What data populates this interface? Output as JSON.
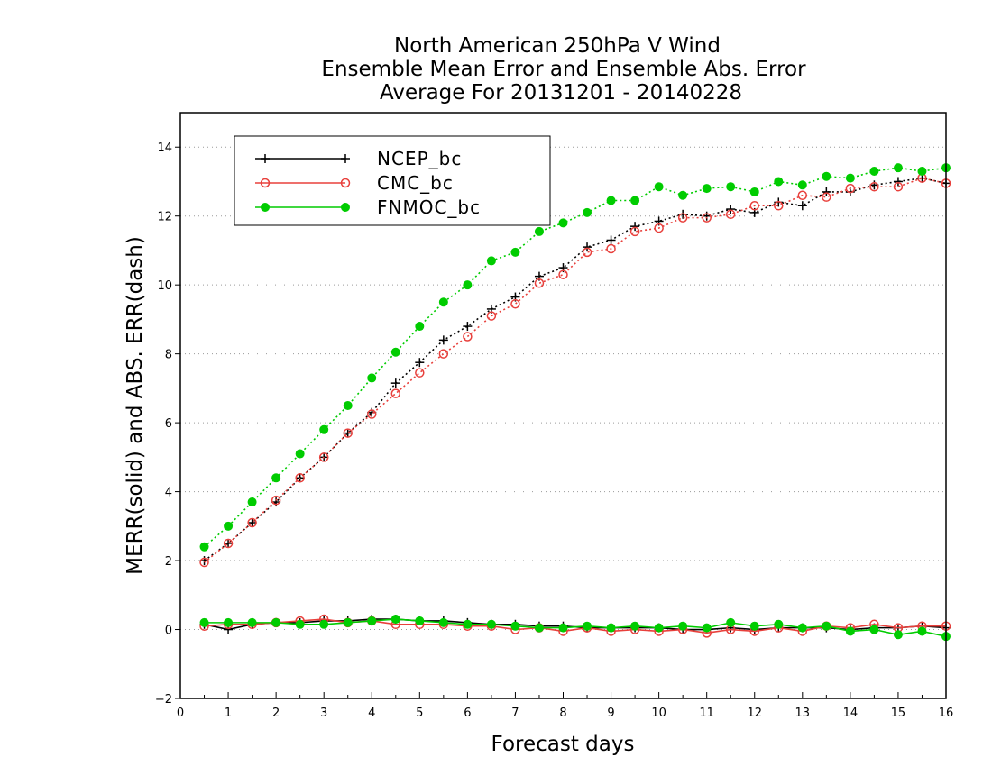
{
  "title_lines": [
    "North American 250hPa V Wind",
    "Ensemble Mean Error and Ensemble Abs. Error",
    "Average For 20131201 - 20140228"
  ],
  "chart_data": {
    "type": "line",
    "title": "North American 250hPa V Wind\nEnsemble Mean Error and Ensemble Abs. Error\nAverage For 20131201 - 20140228",
    "xlabel": "Forecast days",
    "ylabel": "MERR(solid) and ABS. ERR(dash)",
    "xlim": [
      0,
      16
    ],
    "ylim": [
      -2,
      15
    ],
    "xticks": [
      0,
      1,
      2,
      3,
      4,
      5,
      6,
      7,
      8,
      9,
      10,
      11,
      12,
      13,
      14,
      15,
      16
    ],
    "yticks": [
      -2,
      0,
      2,
      4,
      6,
      8,
      10,
      12,
      14
    ],
    "grid": "horizontal dotted",
    "legend_position": "top-left",
    "x": [
      0.5,
      1,
      1.5,
      2,
      2.5,
      3,
      3.5,
      4,
      4.5,
      5,
      5.5,
      6,
      6.5,
      7,
      7.5,
      8,
      8.5,
      9,
      9.5,
      10,
      10.5,
      11,
      11.5,
      12,
      12.5,
      13,
      13.5,
      14,
      14.5,
      15,
      15.5,
      16
    ],
    "series": [
      {
        "name": "NCEP_bc",
        "color": "#000000",
        "marker": "plus",
        "abs_err": [
          2.0,
          2.5,
          3.1,
          3.7,
          4.4,
          5.0,
          5.7,
          6.3,
          7.15,
          7.75,
          8.4,
          8.8,
          9.3,
          9.65,
          10.25,
          10.5,
          11.1,
          11.3,
          11.7,
          11.85,
          12.05,
          12.0,
          12.2,
          12.1,
          12.4,
          12.3,
          12.7,
          12.7,
          12.9,
          13.0,
          13.1,
          12.95
        ],
        "mean_err": [
          0.15,
          0.0,
          0.15,
          0.2,
          0.2,
          0.25,
          0.25,
          0.3,
          0.3,
          0.25,
          0.25,
          0.2,
          0.15,
          0.15,
          0.1,
          0.1,
          0.05,
          0.05,
          0.05,
          0.05,
          0.0,
          0.0,
          0.05,
          0.0,
          0.05,
          0.05,
          0.05,
          0.0,
          0.05,
          0.05,
          0.1,
          0.05
        ]
      },
      {
        "name": "CMC_bc",
        "color": "#e8403c",
        "marker": "open-circle",
        "abs_err": [
          1.95,
          2.5,
          3.1,
          3.75,
          4.4,
          5.0,
          5.7,
          6.25,
          6.85,
          7.45,
          8.0,
          8.5,
          9.1,
          9.45,
          10.05,
          10.3,
          10.95,
          11.05,
          11.55,
          11.65,
          11.95,
          11.95,
          12.05,
          12.3,
          12.3,
          12.6,
          12.55,
          12.8,
          12.85,
          12.85,
          13.1,
          12.95
        ],
        "mean_err": [
          0.1,
          0.15,
          0.15,
          0.2,
          0.25,
          0.3,
          0.2,
          0.25,
          0.15,
          0.15,
          0.15,
          0.1,
          0.1,
          0.0,
          0.05,
          -0.05,
          0.05,
          -0.05,
          0.0,
          -0.05,
          0.0,
          -0.1,
          0.0,
          -0.05,
          0.05,
          -0.05,
          0.1,
          0.05,
          0.15,
          0.05,
          0.1,
          0.1
        ]
      },
      {
        "name": "FNMOC_bc",
        "color": "#00cc00",
        "marker": "filled-circle",
        "abs_err": [
          2.4,
          3.0,
          3.7,
          4.4,
          5.1,
          5.8,
          6.5,
          7.3,
          8.05,
          8.8,
          9.5,
          10.0,
          10.7,
          10.95,
          11.55,
          11.8,
          12.1,
          12.45,
          12.45,
          12.85,
          12.6,
          12.8,
          12.85,
          12.7,
          13.0,
          12.9,
          13.15,
          13.1,
          13.3,
          13.4,
          13.3,
          13.4
        ],
        "mean_err": [
          0.2,
          0.2,
          0.2,
          0.2,
          0.15,
          0.15,
          0.2,
          0.25,
          0.3,
          0.25,
          0.2,
          0.15,
          0.15,
          0.1,
          0.05,
          0.05,
          0.1,
          0.05,
          0.1,
          0.05,
          0.1,
          0.05,
          0.2,
          0.1,
          0.15,
          0.05,
          0.1,
          -0.05,
          0.0,
          -0.15,
          -0.05,
          -0.2
        ]
      }
    ]
  }
}
